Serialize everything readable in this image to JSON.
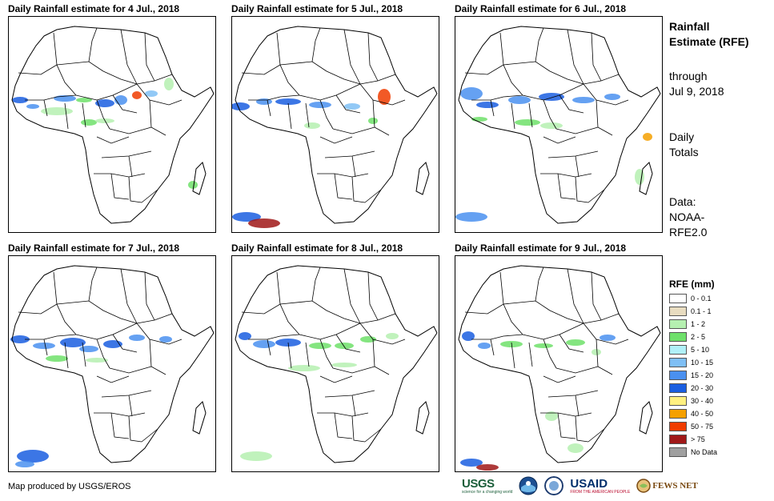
{
  "panels": [
    {
      "title": "Daily Rainfall estimate for 4 Jul., 2018"
    },
    {
      "title": "Daily Rainfall estimate for 5 Jul., 2018"
    },
    {
      "title": "Daily Rainfall estimate for 6 Jul., 2018"
    },
    {
      "title": "Daily Rainfall estimate for 7 Jul., 2018"
    },
    {
      "title": "Daily Rainfall estimate for 8 Jul., 2018"
    },
    {
      "title": "Daily Rainfall estimate for 9 Jul., 2018"
    }
  ],
  "sidebar": {
    "title": "Rainfall Estimate (RFE)",
    "through_label": "through",
    "through_date": "Jul 9, 2018",
    "totals": "Daily Totals",
    "data_label": "Data:",
    "data_source": "NOAA-RFE2.0"
  },
  "legend": {
    "title": "RFE (mm)",
    "items": [
      {
        "label": "0 - 0.1",
        "color": "#ffffff"
      },
      {
        "label": "0.1 - 1",
        "color": "#e8dcc0"
      },
      {
        "label": "1 - 2",
        "color": "#b5f0b0"
      },
      {
        "label": "2 - 5",
        "color": "#6ee06a"
      },
      {
        "label": "5 - 10",
        "color": "#b0f0f8"
      },
      {
        "label": "10 - 15",
        "color": "#7fbff5"
      },
      {
        "label": "15 - 20",
        "color": "#4a90f0"
      },
      {
        "label": "20 - 30",
        "color": "#1a5ee0"
      },
      {
        "label": "30 - 40",
        "color": "#fff080"
      },
      {
        "label": "40 - 50",
        "color": "#f5a000"
      },
      {
        "label": "50 - 75",
        "color": "#f03c00"
      },
      {
        "label": "> 75",
        "color": "#a01818"
      },
      {
        "label": "No Data",
        "color": "#a0a0a0"
      }
    ]
  },
  "credit": "Map produced by USGS/EROS",
  "logos": {
    "usgs": "USGS",
    "usgs_tagline": "science for a changing world",
    "usaid": "USAID",
    "usaid_tagline": "FROM THE AMERICAN PEOPLE",
    "fews": "FEWS NET"
  }
}
